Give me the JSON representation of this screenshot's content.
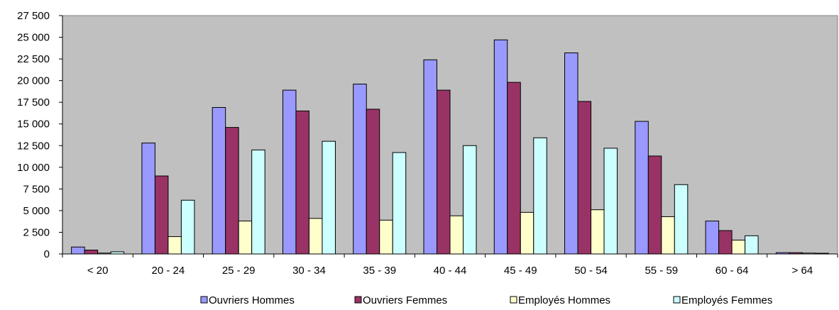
{
  "chart_data": {
    "type": "bar",
    "title": "",
    "xlabel": "",
    "ylabel": "",
    "ylim": [
      0,
      27500
    ],
    "yticks": [
      0,
      2500,
      5000,
      7500,
      10000,
      12500,
      15000,
      17500,
      20000,
      22500,
      25000,
      27500
    ],
    "ytick_labels": [
      "0",
      "2 500",
      "5 000",
      "7 500",
      "10 000",
      "12 500",
      "15 000",
      "17 500",
      "20 000",
      "22 500",
      "25 000",
      "27 500"
    ],
    "categories": [
      "< 20",
      "20 - 24",
      "25 - 29",
      "30 - 34",
      "35 - 39",
      "40 - 44",
      "45 - 49",
      "50 - 54",
      "55 - 59",
      "60 - 64",
      "> 64"
    ],
    "series": [
      {
        "name": "Ouvriers Hommes",
        "color": "#9999ff",
        "values": [
          800,
          12800,
          16900,
          18900,
          19600,
          22400,
          24700,
          23200,
          15300,
          3800,
          150
        ]
      },
      {
        "name": "Ouvriers Femmes",
        "color": "#993366",
        "values": [
          450,
          9000,
          14600,
          16500,
          16700,
          18900,
          19800,
          17600,
          11300,
          2700,
          150
        ]
      },
      {
        "name": "Employés Hommes",
        "color": "#ffffcc",
        "values": [
          100,
          2000,
          3800,
          4100,
          3900,
          4400,
          4800,
          5100,
          4300,
          1600,
          100
        ]
      },
      {
        "name": "Employés Femmes",
        "color": "#ccffff",
        "values": [
          250,
          6200,
          12000,
          13000,
          11700,
          12500,
          13400,
          12200,
          8000,
          2100,
          80
        ]
      }
    ],
    "grid": false,
    "plot_background": "#c0c0c0",
    "legend_position": "bottom"
  }
}
